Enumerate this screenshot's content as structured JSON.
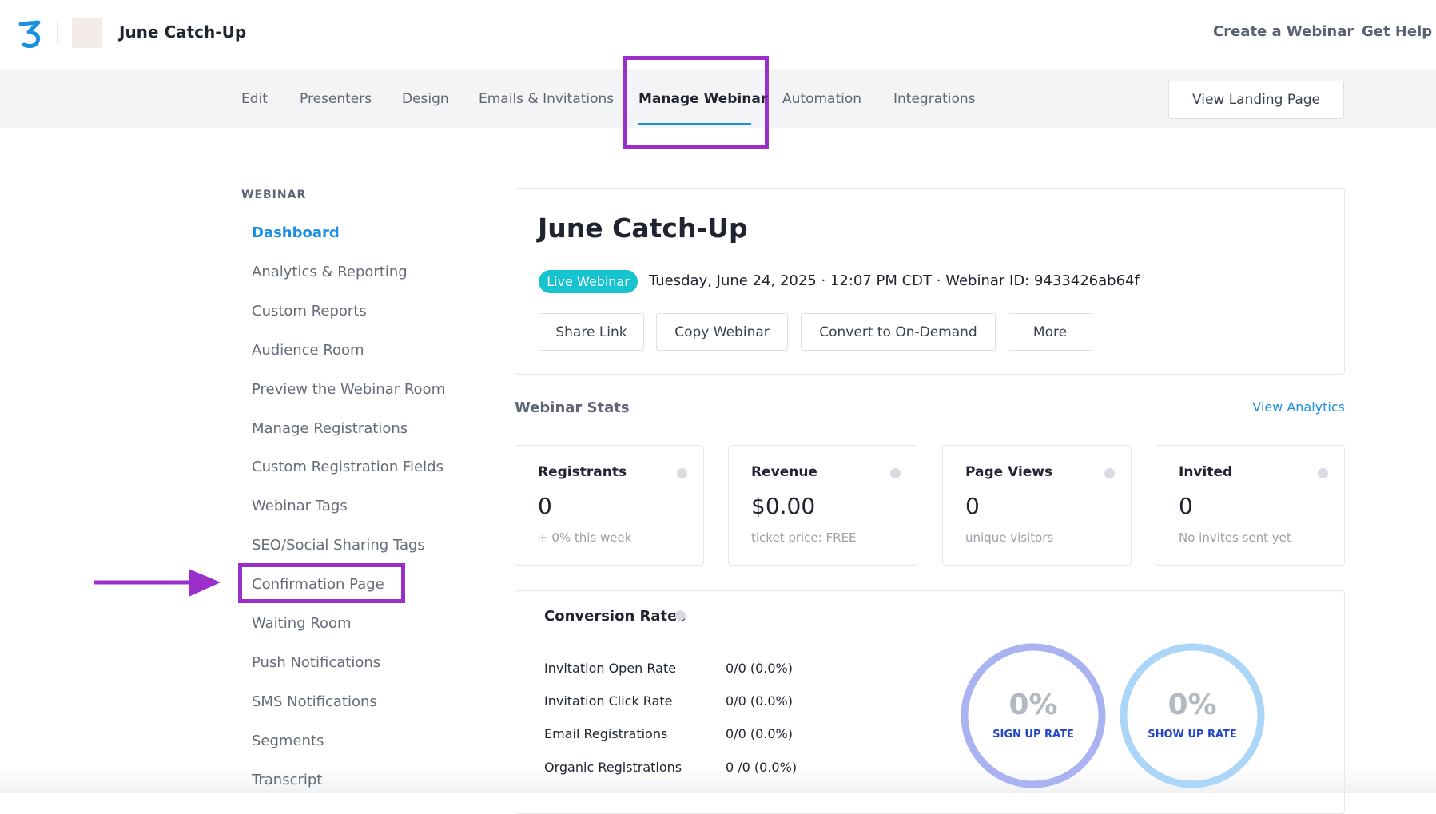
{
  "header": {
    "title": "June Catch-Up",
    "links": [
      "Create a Webinar",
      "Get Help"
    ]
  },
  "tabs": {
    "items": [
      "Edit",
      "Presenters",
      "Design",
      "Emails & Invitations",
      "Manage Webinar",
      "Automation",
      "Integrations"
    ],
    "active": 4,
    "button": "View Landing Page"
  },
  "sidebar": {
    "heading": "WEBINAR",
    "active": 0,
    "highlighted": 9,
    "items": [
      "Dashboard",
      "Analytics & Reporting",
      "Custom Reports",
      "Audience Room",
      "Preview the Webinar Room",
      "Manage Registrations",
      "Custom Registration Fields",
      "Webinar Tags",
      "SEO/Social Sharing Tags",
      "Confirmation Page",
      "Waiting Room",
      "Push Notifications",
      "SMS Notifications",
      "Segments",
      "Transcript"
    ]
  },
  "webinar": {
    "title": "June Catch-Up",
    "badge": "Live Webinar",
    "meta": "Tuesday, June 24, 2025 · 12:07 PM CDT · Webinar ID: 9433426ab64f",
    "buttons": [
      "Share Link",
      "Copy Webinar",
      "Convert to On-Demand",
      "More"
    ]
  },
  "stats": {
    "heading": "Webinar Stats",
    "link": "View Analytics",
    "cards": [
      {
        "label": "Registrants",
        "value": "0",
        "note": "+ 0% this week"
      },
      {
        "label": "Revenue",
        "value": "$0.00",
        "note": "ticket price: FREE"
      },
      {
        "label": "Page Views",
        "value": "0",
        "note": "unique visitors"
      },
      {
        "label": "Invited",
        "value": "0",
        "note": "No invites sent yet"
      }
    ]
  },
  "conversion": {
    "title": "Conversion Rates",
    "rows": [
      [
        "Invitation Open Rate",
        "0/0 (0.0%)"
      ],
      [
        "Invitation Click Rate",
        "0/0 (0.0%)"
      ],
      [
        "Email Registrations",
        "0/0 (0.0%)"
      ],
      [
        "Organic Registrations",
        "0 /0 (0.0%)"
      ]
    ],
    "circles": [
      {
        "value": "0%",
        "label": "SIGN UP RATE"
      },
      {
        "value": "0%",
        "label": "SHOW UP RATE"
      }
    ]
  }
}
